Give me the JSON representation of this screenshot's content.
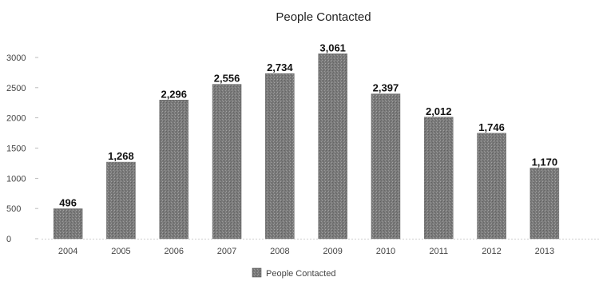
{
  "chart_data": {
    "type": "bar",
    "title": "People Contacted",
    "xlabel": "",
    "ylabel": "",
    "categories": [
      "2004",
      "2005",
      "2006",
      "2007",
      "2008",
      "2009",
      "2010",
      "2011",
      "2012",
      "2013"
    ],
    "series": [
      {
        "name": "People Contacted",
        "values": [
          496,
          1268,
          2296,
          2556,
          2734,
          3061,
          2397,
          2012,
          1746,
          1170
        ],
        "labels": [
          "496",
          "1,268",
          "2,296",
          "2,556",
          "2,734",
          "3,061",
          "2,397",
          "2,012",
          "1,746",
          "1,170"
        ],
        "color": "#7a7a7a"
      }
    ],
    "yticks": [
      {
        "value": 0,
        "label": "0"
      },
      {
        "value": 500,
        "label": "500"
      },
      {
        "value": 1000,
        "label": "1000"
      },
      {
        "value": 1500,
        "label": "1500"
      },
      {
        "value": 2000,
        "label": "2000"
      },
      {
        "value": 2500,
        "label": "2500"
      },
      {
        "value": 3000,
        "label": "3000"
      }
    ],
    "ylim": [
      0,
      3150
    ],
    "grid": false,
    "legend": {
      "position": "bottom",
      "entries": [
        "People Contacted"
      ]
    }
  }
}
